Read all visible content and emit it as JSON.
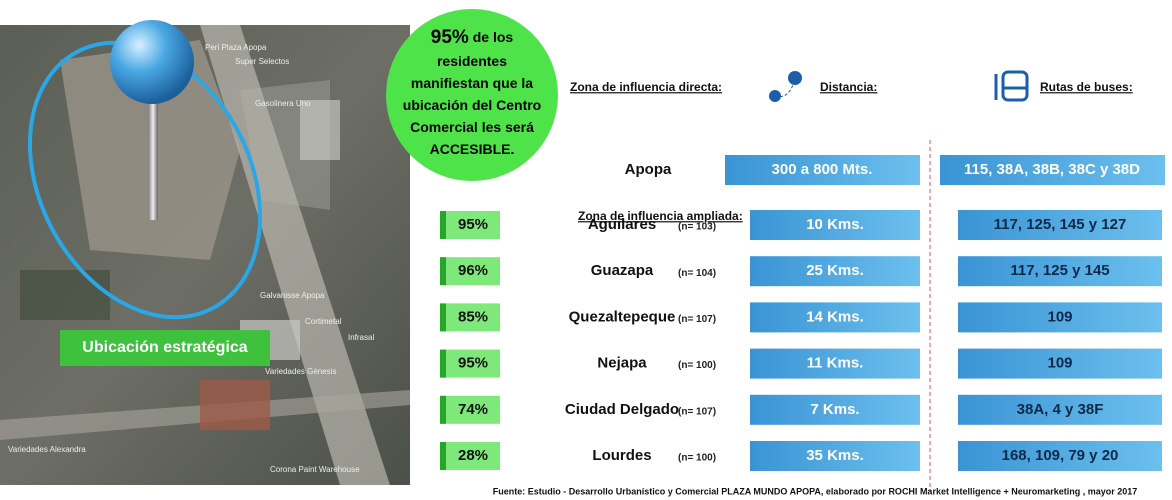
{
  "map": {
    "badge": "Ubicación estratégica",
    "labels": [
      "Peri Plaza Apopa",
      "Super Selectos",
      "Gasolinera Uno",
      "Galvanisse Apopa",
      "Cortimetal",
      "Infrasal",
      "Variedades Génesis",
      "Variedades Alexandra",
      "Corona Paint Warehouse"
    ]
  },
  "callout": {
    "percent": "95%",
    "first": " de los",
    "lines": [
      "residentes",
      "manifiestan que la",
      "ubicación del Centro",
      "Comercial les  será",
      "ACCESIBLE."
    ]
  },
  "direct": {
    "heading": "Zona de influencia directa:",
    "distance_heading": "Distancia:",
    "routes_heading": "Rutas de buses:",
    "row": {
      "place": "Apopa",
      "distance": "300 a 800 Mts.",
      "routes": "115, 38A, 38B, 38C y 38D"
    }
  },
  "extended": {
    "heading": "Zona de influencia ampliada:",
    "rows": [
      {
        "percent": "95%",
        "place": "Aguilares",
        "n": "(n= 103)",
        "distance": "10 Kms.",
        "routes": "117, 125, 145 y 127"
      },
      {
        "percent": "96%",
        "place": "Guazapa",
        "n": "(n= 104)",
        "distance": "25 Kms.",
        "routes": "117, 125 y 145"
      },
      {
        "percent": "85%",
        "place": "Quezaltepeque",
        "n": "(n= 107)",
        "distance": "14 Kms.",
        "routes": "109"
      },
      {
        "percent": "95%",
        "place": "Nejapa",
        "n": "(n= 100)",
        "distance": "11 Kms.",
        "routes": "109"
      },
      {
        "percent": "74%",
        "place": "Ciudad Delgado",
        "n": "(n= 107)",
        "distance": "7 Kms.",
        "routes": "38A, 4 y 38F"
      },
      {
        "percent": "28%",
        "place": "Lourdes",
        "n": "(n= 100)",
        "distance": "35 Kms.",
        "routes": "168, 109, 79 y 20"
      }
    ]
  },
  "source": "Fuente: Estudio - Desarrollo Urbanístico y Comercial PLAZA MUNDO APOPA, elaborado por ROCHI Market Intelligence + Neuromarketing , mayor 2017"
}
